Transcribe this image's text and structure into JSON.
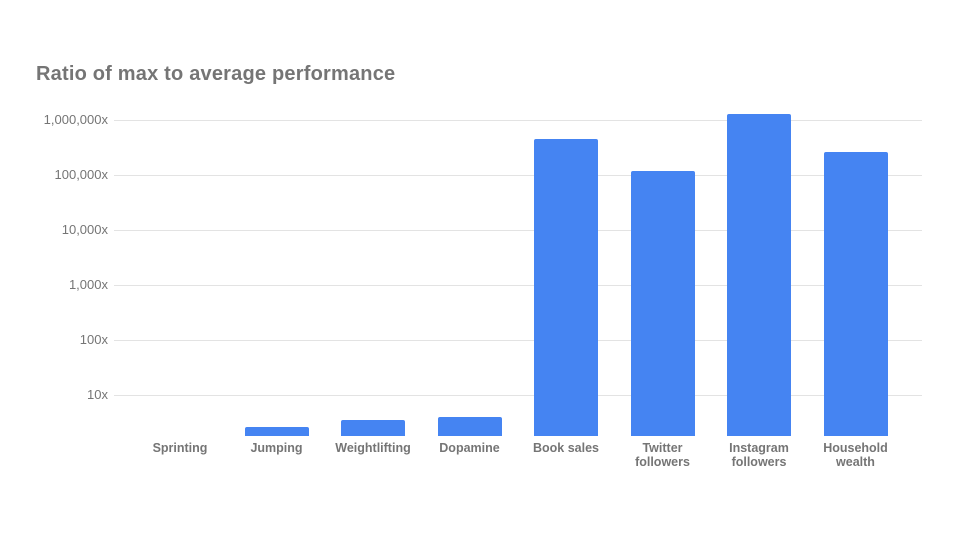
{
  "chart_data": {
    "type": "bar",
    "title": "Ratio of max to average performance",
    "xlabel": "",
    "ylabel": "",
    "categories": [
      "Sprinting",
      "Jumping",
      "Weightlifting",
      "Dopamine",
      "Book sales",
      "Twitter followers",
      "Instagram followers",
      "Household wealth"
    ],
    "values": [
      1.2,
      2.6,
      3.5,
      4,
      450000,
      120000,
      1300000,
      260000
    ],
    "yaxis": {
      "scale": "log",
      "ylim": [
        1.8,
        1300000
      ],
      "tick_values": [
        1000000,
        100000,
        10000,
        1000,
        100,
        10
      ],
      "tick_labels": [
        "1,000,000x",
        "100,000x",
        "10,000x",
        "1,000x",
        "100x",
        "10x"
      ]
    },
    "grid": true,
    "legend": "none",
    "colors": {
      "bar": "#4584f2",
      "gridline": "#e3e3e3",
      "title_text": "#757575",
      "axis_text": "#757575",
      "background": "#ffffff"
    }
  }
}
